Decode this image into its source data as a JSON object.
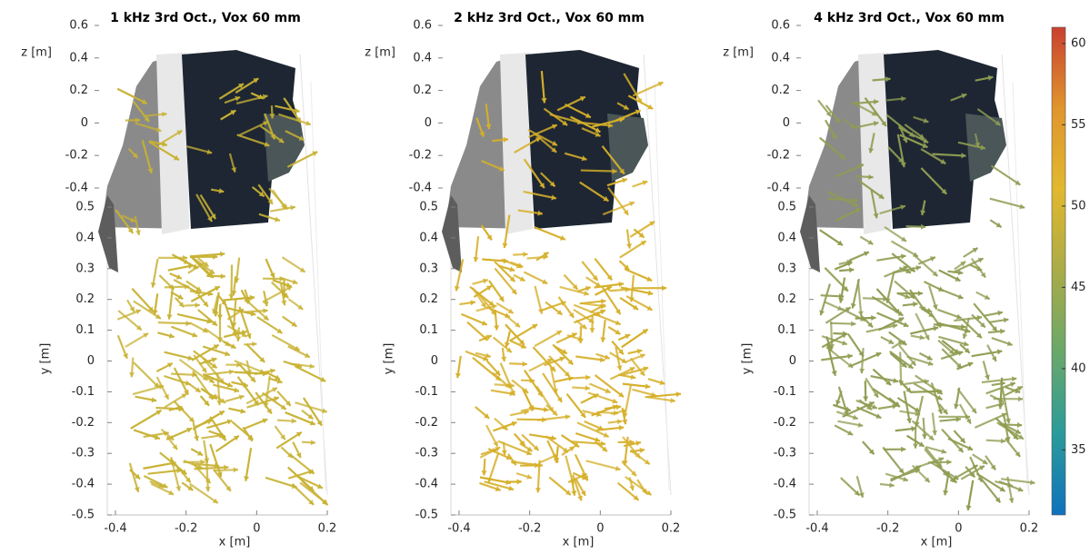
{
  "chart_data": [
    {
      "type": "quiver3d",
      "title": "1 kHz 3rd Oct., Vox 60 mm",
      "xlabel": "x [m]",
      "ylabel": "y [m]",
      "zlabel": "z [m]",
      "xlim": [
        -0.4,
        0.2
      ],
      "xticks": [
        -0.4,
        -0.2,
        0,
        0.2
      ],
      "ylim": [
        -0.5,
        0.5
      ],
      "yticks": [
        -0.5,
        -0.4,
        -0.3,
        -0.2,
        -0.1,
        0,
        0.1,
        0.2,
        0.3,
        0.4,
        0.5
      ],
      "zticks": [
        -0.4,
        -0.2,
        0,
        0.2,
        0.4,
        0.6
      ],
      "color": "#c8b233"
    },
    {
      "type": "quiver3d",
      "title": "2 kHz 3rd Oct., Vox 60 mm",
      "xlabel": "x [m]",
      "ylabel": "y [m]",
      "zlabel": "z [m]",
      "xlim": [
        -0.4,
        0.2
      ],
      "xticks": [
        -0.4,
        -0.2,
        0,
        0.2
      ],
      "ylim": [
        -0.5,
        0.5
      ],
      "yticks": [
        -0.5,
        -0.4,
        -0.3,
        -0.2,
        -0.1,
        0,
        0.1,
        0.2,
        0.3,
        0.4,
        0.5
      ],
      "zticks": [
        -0.4,
        -0.2,
        0,
        0.2,
        0.4,
        0.6
      ],
      "color": "#d6b02a"
    },
    {
      "type": "quiver3d",
      "title": "4 kHz 3rd Oct., Vox 60 mm",
      "xlabel": "x [m]",
      "ylabel": "y [m]",
      "zlabel": "z [m]",
      "xlim": [
        -0.4,
        0.2
      ],
      "xticks": [
        -0.4,
        -0.2,
        0,
        0.2
      ],
      "ylim": [
        -0.5,
        0.5
      ],
      "yticks": [
        -0.5,
        -0.4,
        -0.3,
        -0.2,
        -0.1,
        0,
        0.1,
        0.2,
        0.3,
        0.4,
        0.5
      ],
      "zticks": [
        -0.4,
        -0.2,
        0,
        0.2,
        0.4,
        0.6
      ],
      "color": "#8f9d52"
    }
  ],
  "colorbar": {
    "lim": [
      31,
      61
    ],
    "ticks": [
      35,
      40,
      45,
      50,
      55,
      60
    ],
    "colors": [
      "#0f72bd",
      "#2a9b9a",
      "#6aa86a",
      "#a9ab48",
      "#e1b82e",
      "#e0952e",
      "#c9412f"
    ]
  }
}
